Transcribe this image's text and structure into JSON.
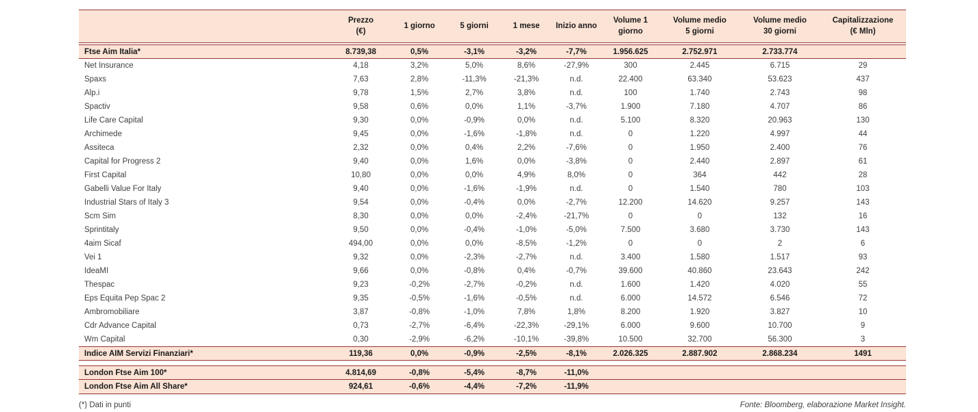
{
  "colors": {
    "highlight_bg": "#fbe3d5",
    "border": "#953735"
  },
  "table": {
    "headers": [
      [
        ""
      ],
      [
        "Prezzo",
        "(€)"
      ],
      [
        "1 giorno"
      ],
      [
        "5 giorni"
      ],
      [
        "1 mese"
      ],
      [
        "Inizio anno"
      ],
      [
        "Volume 1",
        "giorno"
      ],
      [
        "Volume medio",
        "5 giorni"
      ],
      [
        "Volume medio",
        "30 giorni"
      ],
      [
        "Capitalizzazione",
        "(€ Mln)"
      ]
    ],
    "ftse_row": [
      "Ftse Aim Italia*",
      "8.739,38",
      "0,5%",
      "-3,1%",
      "-3,2%",
      "-7,7%",
      "1.956.625",
      "2.752.971",
      "2.733.774",
      ""
    ],
    "stock_rows": [
      [
        "Net Insurance",
        "4,18",
        "3,2%",
        "5,0%",
        "8,6%",
        "-27,9%",
        "300",
        "2.445",
        "6.715",
        "29"
      ],
      [
        "Spaxs",
        "7,63",
        "2,8%",
        "-11,3%",
        "-21,3%",
        "n.d.",
        "22.400",
        "63.340",
        "53.623",
        "437"
      ],
      [
        "Alp.i",
        "9,78",
        "1,5%",
        "2,7%",
        "3,8%",
        "n.d.",
        "100",
        "1.740",
        "2.743",
        "98"
      ],
      [
        "Spactiv",
        "9,58",
        "0,6%",
        "0,0%",
        "1,1%",
        "-3,7%",
        "1.900",
        "7.180",
        "4.707",
        "86"
      ],
      [
        "Life Care Capital",
        "9,30",
        "0,0%",
        "-0,9%",
        "0,0%",
        "n.d.",
        "5.100",
        "8.320",
        "20.963",
        "130"
      ],
      [
        "Archimede",
        "9,45",
        "0,0%",
        "-1,6%",
        "-1,8%",
        "n.d.",
        "0",
        "1.220",
        "4.997",
        "44"
      ],
      [
        "Assiteca",
        "2,32",
        "0,0%",
        "0,4%",
        "2,2%",
        "-7,6%",
        "0",
        "1.950",
        "2.400",
        "76"
      ],
      [
        "Capital for Progress 2",
        "9,40",
        "0,0%",
        "1,6%",
        "0,0%",
        "-3,8%",
        "0",
        "2.440",
        "2.897",
        "61"
      ],
      [
        "First Capital",
        "10,80",
        "0,0%",
        "0,0%",
        "4,9%",
        "8,0%",
        "0",
        "364",
        "442",
        "28"
      ],
      [
        "Gabelli Value For Italy",
        "9,40",
        "0,0%",
        "-1,6%",
        "-1,9%",
        "n.d.",
        "0",
        "1.540",
        "780",
        "103"
      ],
      [
        "Industrial Stars of Italy 3",
        "9,54",
        "0,0%",
        "-0,4%",
        "0,0%",
        "-2,7%",
        "12.200",
        "14.620",
        "9.257",
        "143"
      ],
      [
        "Scm Sim",
        "8,30",
        "0,0%",
        "0,0%",
        "-2,4%",
        "-21,7%",
        "0",
        "0",
        "132",
        "16"
      ],
      [
        "Sprintitaly",
        "9,50",
        "0,0%",
        "-0,4%",
        "-1,0%",
        "-5,0%",
        "7.500",
        "3.680",
        "3.730",
        "143"
      ],
      [
        "4aim Sicaf",
        "494,00",
        "0,0%",
        "0,0%",
        "-8,5%",
        "-1,2%",
        "0",
        "0",
        "2",
        "6"
      ],
      [
        "Vei 1",
        "9,32",
        "0,0%",
        "-2,3%",
        "-2,7%",
        "n.d.",
        "3.400",
        "1.580",
        "1.517",
        "93"
      ],
      [
        "IdeaMI",
        "9,66",
        "0,0%",
        "-0,8%",
        "0,4%",
        "-0,7%",
        "39.600",
        "40.860",
        "23.643",
        "242"
      ],
      [
        "Thespac",
        "9,23",
        "-0,2%",
        "-2,7%",
        "-0,2%",
        "n.d.",
        "1.600",
        "1.420",
        "4.020",
        "55"
      ],
      [
        "Eps Equita Pep Spac 2",
        "9,35",
        "-0,5%",
        "-1,6%",
        "-0,5%",
        "n.d.",
        "6.000",
        "14.572",
        "6.546",
        "72"
      ],
      [
        "Ambromobiliare",
        "3,87",
        "-0,8%",
        "-1,0%",
        "7,8%",
        "1,8%",
        "8.200",
        "1.920",
        "3.827",
        "10"
      ],
      [
        "Cdr Advance Capital",
        "0,73",
        "-2,7%",
        "-6,4%",
        "-22,3%",
        "-29,1%",
        "6.000",
        "9.600",
        "10.700",
        "9"
      ],
      [
        "Wm Capital",
        "0,30",
        "-2,9%",
        "-6,2%",
        "-10,1%",
        "-39,8%",
        "10.500",
        "32.700",
        "56.300",
        "3"
      ]
    ],
    "servizi_row": [
      "Indice AIM Servizi Finanziari*",
      "119,36",
      "0,0%",
      "-0,9%",
      "-2,5%",
      "-8,1%",
      "2.026.325",
      "2.887.902",
      "2.868.234",
      "1491"
    ],
    "london_rows": [
      [
        "London Ftse Aim 100*",
        "4.814,69",
        "-0,8%",
        "-5,4%",
        "-8,7%",
        "-11,0%",
        "",
        "",
        "",
        ""
      ],
      [
        "London Ftse Aim All Share*",
        "924,61",
        "-0,6%",
        "-4,4%",
        "-7,2%",
        "-11,9%",
        "",
        "",
        "",
        ""
      ]
    ]
  },
  "footer": {
    "note": "(*) Dati in punti",
    "source": "Fonte: Bloomberg, elaborazione Market Insight."
  }
}
